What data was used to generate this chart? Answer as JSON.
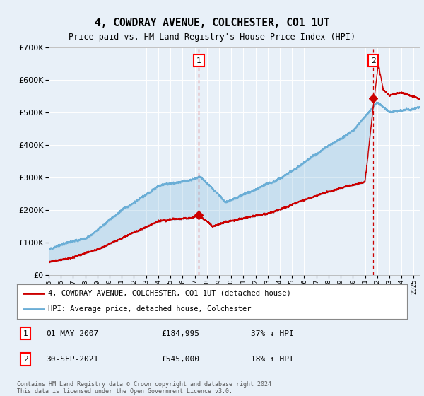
{
  "title": "4, COWDRAY AVENUE, COLCHESTER, CO1 1UT",
  "subtitle": "Price paid vs. HM Land Registry's House Price Index (HPI)",
  "background_color": "#e8f0f8",
  "plot_bg_color": "#e8f0f8",
  "grid_color": "#ffffff",
  "sale1_date": "01-MAY-2007",
  "sale1_price": 184995,
  "sale2_date": "30-SEP-2021",
  "sale2_price": 545000,
  "legend_label_red": "4, COWDRAY AVENUE, COLCHESTER, CO1 1UT (detached house)",
  "legend_label_blue": "HPI: Average price, detached house, Colchester",
  "footer": "Contains HM Land Registry data © Crown copyright and database right 2024.\nThis data is licensed under the Open Government Licence v3.0.",
  "table_row1": [
    "1",
    "01-MAY-2007",
    "£184,995",
    "37% ↓ HPI"
  ],
  "table_row2": [
    "2",
    "30-SEP-2021",
    "£545,000",
    "18% ↑ HPI"
  ],
  "hpi_color": "#6baed6",
  "sale_color": "#cc0000",
  "ylim": [
    0,
    700000
  ],
  "xlim_start": 1995.0,
  "xlim_end": 2025.5
}
